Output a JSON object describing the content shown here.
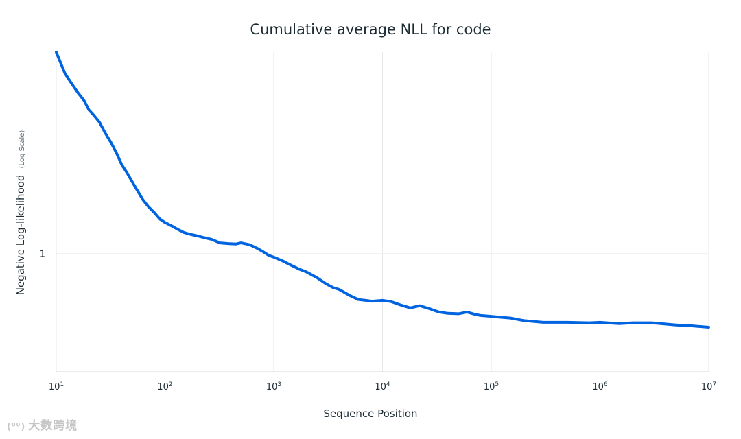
{
  "chart_data": {
    "type": "line",
    "title": "Cumulative average NLL for code",
    "xlabel": "Sequence Position",
    "ylabel": "Negative Log-likelihood",
    "ylabel_note": "(Log Scale)",
    "x_scale": "log",
    "y_scale": "log",
    "xlim": [
      10,
      10000000
    ],
    "ylim": [
      0.72,
      1.75
    ],
    "x_ticks": [
      {
        "base": "10",
        "exp": "1",
        "value": 10
      },
      {
        "base": "10",
        "exp": "2",
        "value": 100
      },
      {
        "base": "10",
        "exp": "3",
        "value": 1000
      },
      {
        "base": "10",
        "exp": "4",
        "value": 10000
      },
      {
        "base": "10",
        "exp": "5",
        "value": 100000
      },
      {
        "base": "10",
        "exp": "6",
        "value": 1000000
      },
      {
        "base": "10",
        "exp": "7",
        "value": 10000000
      }
    ],
    "y_ticks": [
      {
        "label": "1",
        "value": 1.0
      }
    ],
    "series": [
      {
        "name": "code",
        "color": "#0064e0",
        "x": [
          10,
          12,
          14,
          16,
          18,
          20,
          22,
          25,
          28,
          32,
          36,
          40,
          45,
          50,
          56,
          63,
          70,
          80,
          90,
          100,
          115,
          130,
          150,
          170,
          200,
          230,
          270,
          320,
          380,
          450,
          500,
          600,
          700,
          800,
          900,
          1000,
          1200,
          1400,
          1700,
          2000,
          2500,
          3000,
          3500,
          4000,
          5000,
          6000,
          7000,
          8000,
          10000,
          12000,
          15000,
          18000,
          22000,
          27000,
          33000,
          40000,
          50000,
          60000,
          70000,
          80000,
          100000,
          120000,
          150000,
          200000,
          300000,
          500000,
          800000,
          1000000,
          1500000,
          2000000,
          3000000,
          5000000,
          7000000,
          10000000
        ],
        "y": [
          1.75,
          1.65,
          1.6,
          1.56,
          1.53,
          1.49,
          1.47,
          1.44,
          1.4,
          1.36,
          1.32,
          1.28,
          1.25,
          1.22,
          1.19,
          1.16,
          1.14,
          1.12,
          1.1,
          1.09,
          1.08,
          1.07,
          1.06,
          1.055,
          1.05,
          1.045,
          1.04,
          1.03,
          1.028,
          1.027,
          1.03,
          1.025,
          1.015,
          1.005,
          0.995,
          0.99,
          0.98,
          0.97,
          0.958,
          0.95,
          0.935,
          0.92,
          0.91,
          0.905,
          0.89,
          0.88,
          0.878,
          0.876,
          0.878,
          0.875,
          0.866,
          0.86,
          0.865,
          0.858,
          0.85,
          0.847,
          0.846,
          0.85,
          0.845,
          0.842,
          0.84,
          0.838,
          0.836,
          0.83,
          0.826,
          0.826,
          0.825,
          0.826,
          0.823,
          0.825,
          0.825,
          0.82,
          0.818,
          0.815
        ]
      }
    ],
    "grid": true,
    "legend": "none"
  },
  "watermark": {
    "logo": "(⁰⁰)",
    "text": "大数跨境"
  }
}
